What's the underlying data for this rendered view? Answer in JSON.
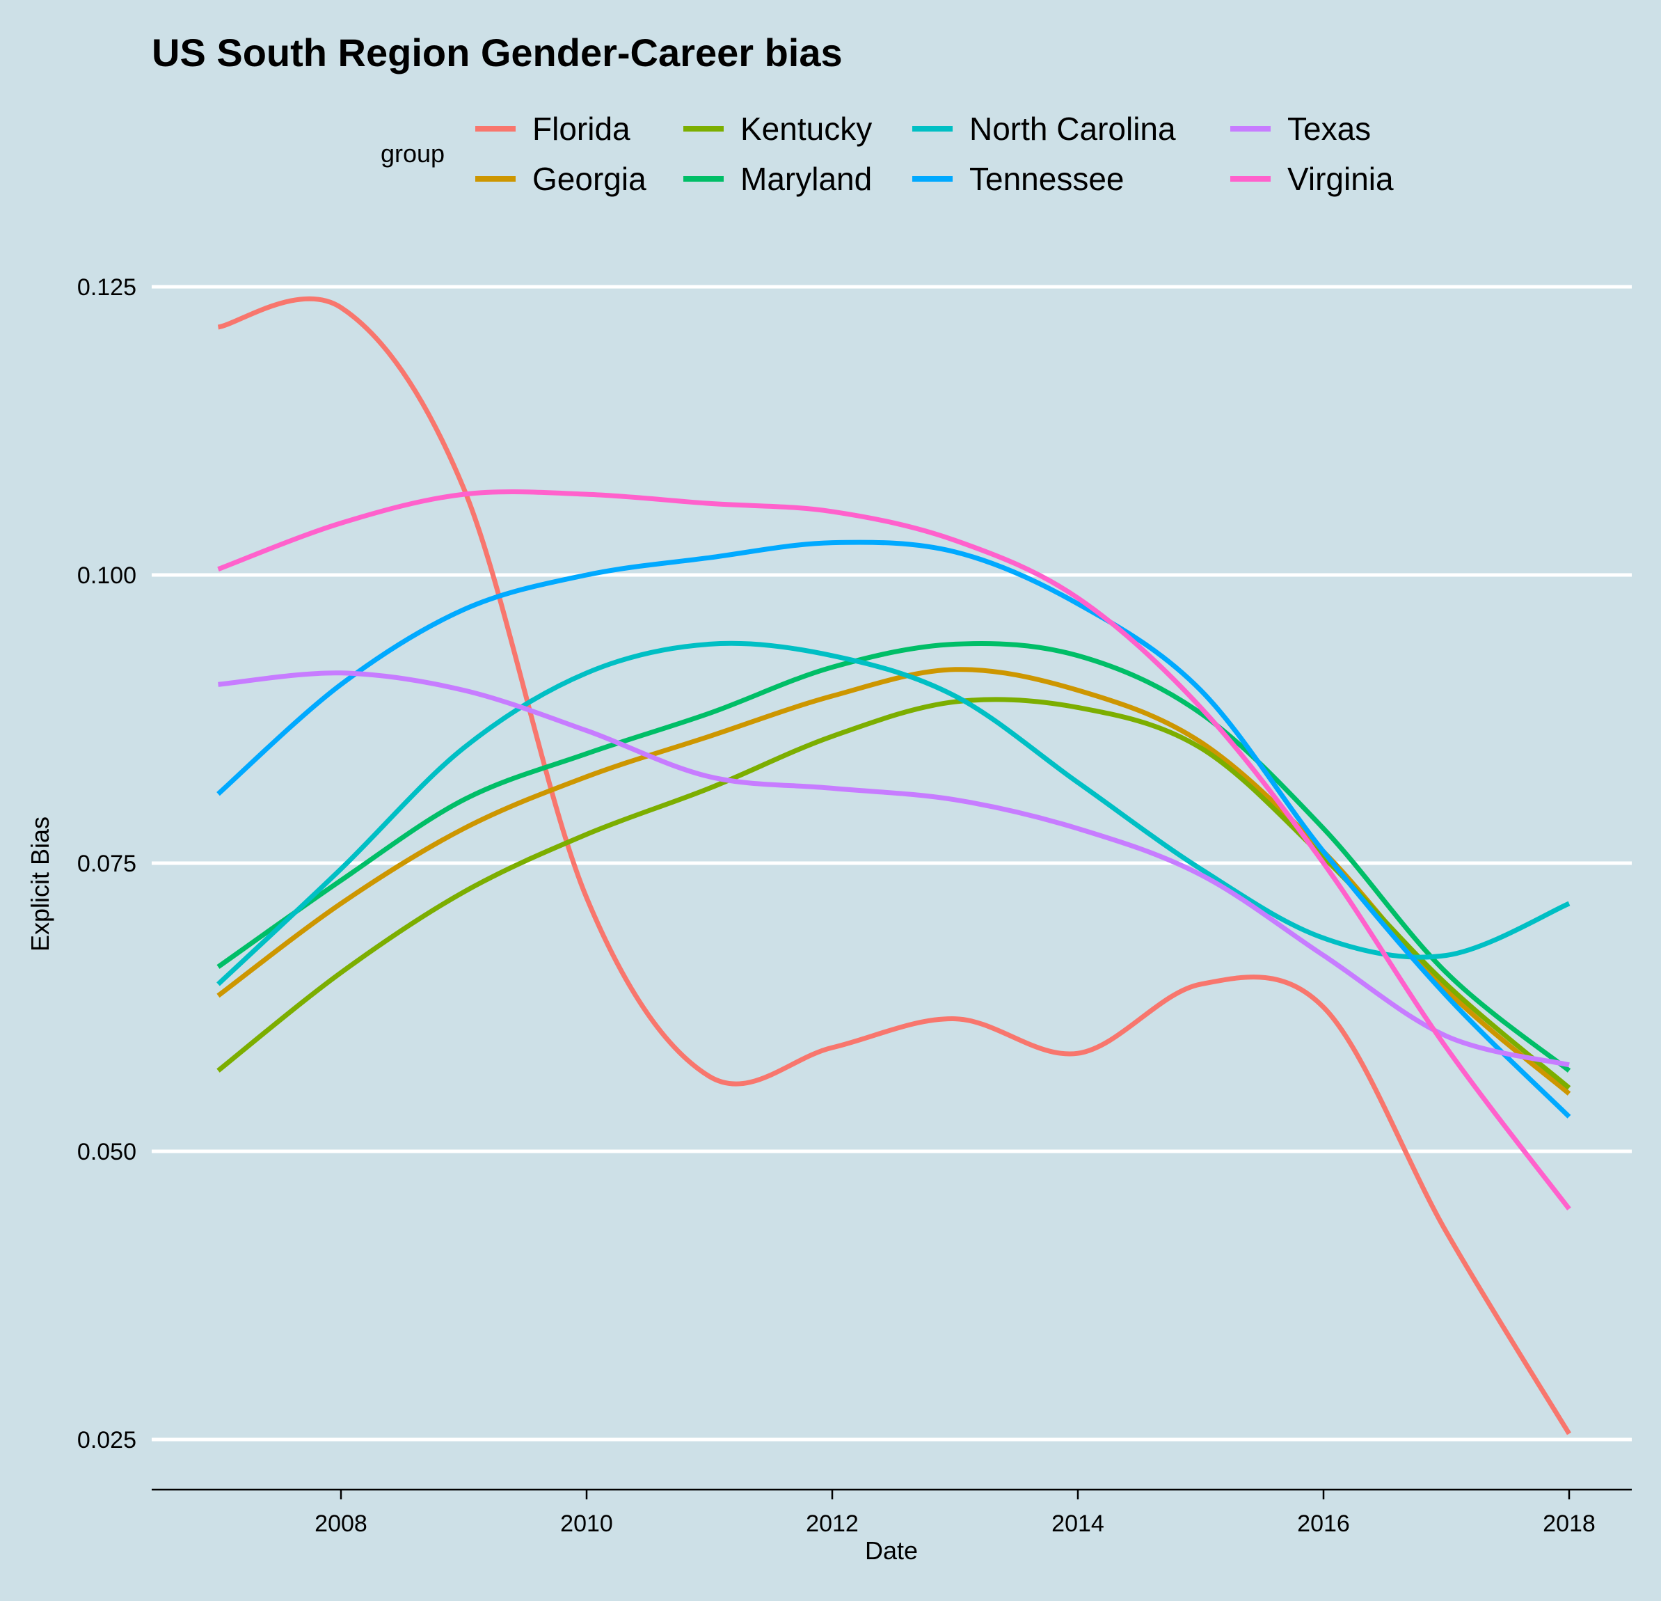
{
  "chart_data": {
    "type": "line",
    "title": "US South Region Gender-Career bias",
    "xlabel": "Date",
    "ylabel": "Explicit Bias",
    "xlim": [
      2006.5,
      2018.5
    ],
    "ylim": [
      0.021,
      0.128
    ],
    "x_ticks": [
      {
        "value": 2008,
        "label": "2008"
      },
      {
        "value": 2010,
        "label": "2010"
      },
      {
        "value": 2012,
        "label": "2012"
      },
      {
        "value": 2014,
        "label": "2014"
      },
      {
        "value": 2016,
        "label": "2016"
      },
      {
        "value": 2018,
        "label": "2018"
      }
    ],
    "y_ticks": [
      {
        "value": 0.025,
        "label": "0.025"
      },
      {
        "value": 0.05,
        "label": "0.050"
      },
      {
        "value": 0.075,
        "label": "0.075"
      },
      {
        "value": 0.1,
        "label": "0.100"
      },
      {
        "value": 0.125,
        "label": "0.125"
      }
    ],
    "grid": "horizontal",
    "legend": {
      "title": "group",
      "position": "top"
    },
    "x": [
      2007,
      2008,
      2009,
      2010,
      2011,
      2012,
      2013,
      2014,
      2015,
      2016,
      2017,
      2018
    ],
    "series": [
      {
        "name": "Florida",
        "color": "#f8766d",
        "values": [
          0.1215,
          0.1232,
          0.1075,
          0.072,
          0.0565,
          0.059,
          0.0615,
          0.0585,
          0.0645,
          0.0625,
          0.043,
          0.0255
        ]
      },
      {
        "name": "Georgia",
        "color": "#cd9600",
        "values": [
          0.0635,
          0.0715,
          0.078,
          0.0825,
          0.086,
          0.0895,
          0.0918,
          0.09,
          0.0855,
          0.076,
          0.064,
          0.055
        ]
      },
      {
        "name": "Kentucky",
        "color": "#7cae00",
        "values": [
          0.057,
          0.0655,
          0.0725,
          0.0775,
          0.0815,
          0.086,
          0.089,
          0.0885,
          0.085,
          0.0755,
          0.0645,
          0.0555
        ]
      },
      {
        "name": "Maryland",
        "color": "#00be67",
        "values": [
          0.066,
          0.0735,
          0.0805,
          0.0845,
          0.088,
          0.092,
          0.094,
          0.093,
          0.088,
          0.078,
          0.0655,
          0.057
        ]
      },
      {
        "name": "North Carolina",
        "color": "#00bfc4",
        "values": [
          0.0645,
          0.0745,
          0.085,
          0.0915,
          0.094,
          0.093,
          0.0895,
          0.082,
          0.0745,
          0.0685,
          0.067,
          0.0715
        ]
      },
      {
        "name": "Tennessee",
        "color": "#00a9ff",
        "values": [
          0.081,
          0.0905,
          0.097,
          0.1,
          0.1015,
          0.1028,
          0.102,
          0.0975,
          0.09,
          0.076,
          0.0635,
          0.053
        ]
      },
      {
        "name": "Texas",
        "color": "#c77cff",
        "values": [
          0.0905,
          0.0915,
          0.09,
          0.0865,
          0.0825,
          0.0815,
          0.0805,
          0.078,
          0.074,
          0.067,
          0.06,
          0.0575
        ]
      },
      {
        "name": "Virginia",
        "color": "#ff61cc",
        "values": [
          0.1005,
          0.1045,
          0.107,
          0.107,
          0.1062,
          0.1055,
          0.103,
          0.098,
          0.0885,
          0.075,
          0.059,
          0.045
        ]
      }
    ]
  }
}
